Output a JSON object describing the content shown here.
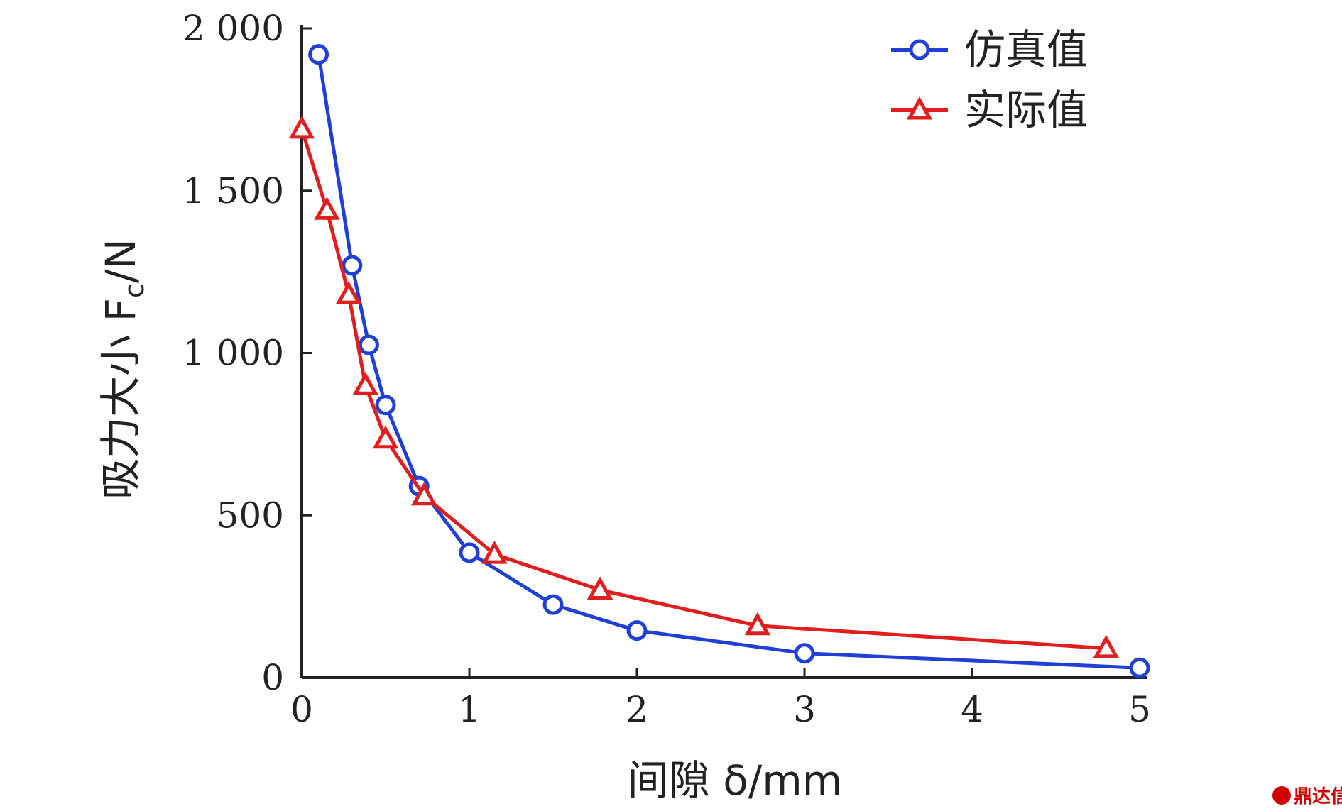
{
  "chart_data": {
    "type": "line",
    "title": "",
    "xlabel": "间隙 δ/mm",
    "ylabel": "吸力大小 F",
    "ylabel_subscript": "c",
    "ylabel_unit": "/N",
    "xlim": [
      0,
      5
    ],
    "ylim": [
      0,
      2000
    ],
    "x_ticks": [
      0,
      1,
      2,
      3,
      4,
      5
    ],
    "x_tick_labels": [
      "0",
      "1",
      "2",
      "3",
      "4",
      "5"
    ],
    "y_ticks": [
      0,
      500,
      1000,
      1500,
      2000
    ],
    "y_tick_labels": [
      "0",
      "500",
      "1 000",
      "1 500",
      "2 000"
    ],
    "grid": false,
    "legend_position": "top-right",
    "series": [
      {
        "name": "仿真值",
        "color": "#1f3fd6",
        "marker": "circle",
        "x": [
          0.1,
          0.3,
          0.4,
          0.5,
          0.7,
          1.0,
          1.5,
          2.0,
          3.0,
          5.0
        ],
        "y": [
          1920,
          1270,
          1025,
          840,
          590,
          385,
          225,
          145,
          75,
          30
        ]
      },
      {
        "name": "实际值",
        "color": "#e01e1e",
        "marker": "triangle",
        "x": [
          0.0,
          0.15,
          0.28,
          0.38,
          0.5,
          0.73,
          1.15,
          1.78,
          2.72,
          4.8
        ],
        "y": [
          1690,
          1440,
          1180,
          900,
          735,
          560,
          380,
          270,
          160,
          90
        ]
      }
    ]
  },
  "watermark": {
    "text": "鼎达信"
  }
}
